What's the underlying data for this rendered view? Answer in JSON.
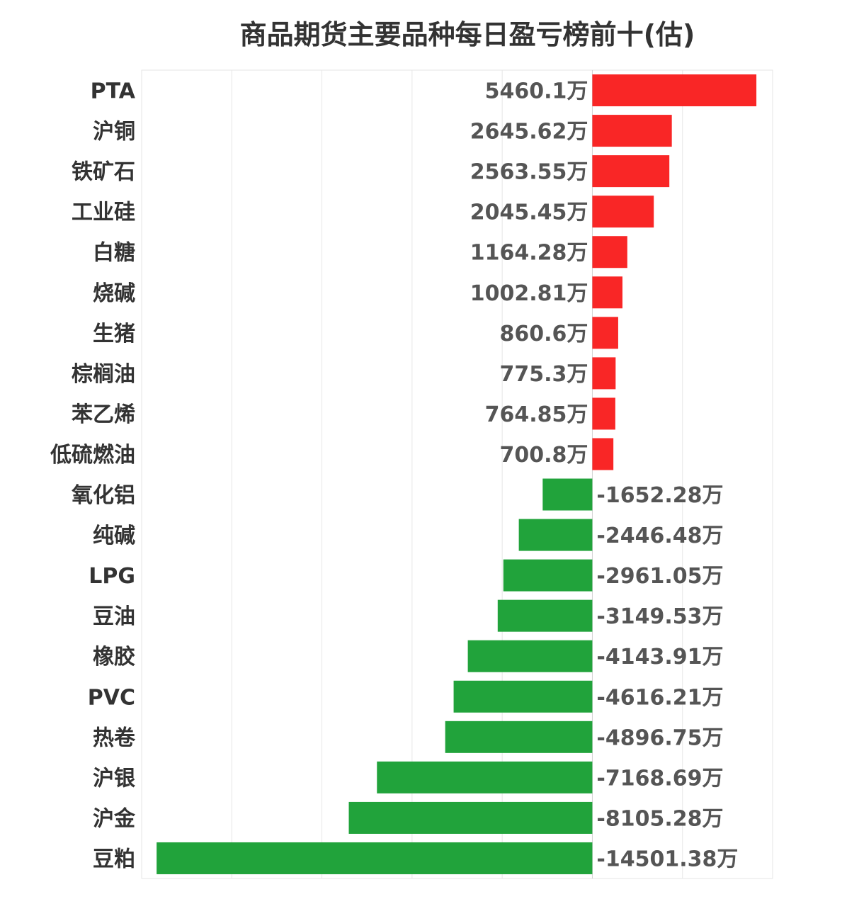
{
  "chart_data": {
    "type": "bar",
    "orientation": "horizontal",
    "title": "商品期货主要品种每日盈亏榜前十(估)",
    "unit_suffix": "万",
    "categories": [
      "PTA",
      "沪铜",
      "铁矿石",
      "工业硅",
      "白糖",
      "烧碱",
      "生猪",
      "棕榈油",
      "苯乙烯",
      "低硫燃油",
      "氧化铝",
      "纯碱",
      "LPG",
      "豆油",
      "橡胶",
      "PVC",
      "热卷",
      "沪银",
      "沪金",
      "豆粕"
    ],
    "values": [
      5460.1,
      2645.62,
      2563.55,
      2045.45,
      1164.28,
      1002.81,
      860.6,
      775.3,
      764.85,
      700.8,
      -1652.28,
      -2446.48,
      -2961.05,
      -3149.53,
      -4143.91,
      -4616.21,
      -4896.75,
      -7168.69,
      -8105.28,
      -14501.38
    ],
    "labels": [
      "5460.1万",
      "2645.62万",
      "2563.55万",
      "2045.45万",
      "1164.28万",
      "1002.81万",
      "860.6万",
      "775.3万",
      "764.85万",
      "700.8万",
      "-1652.28万",
      "-2446.48万",
      "-2961.05万",
      "-3149.53万",
      "-4143.91万",
      "-4616.21万",
      "-4896.75万",
      "-7168.69万",
      "-8105.28万",
      "-14501.38万"
    ],
    "xlim": [
      -15000,
      6000
    ],
    "grid_step": 3000,
    "grid": true,
    "xlabel": "",
    "ylabel": "",
    "colors": {
      "positive": "#f92626",
      "negative": "#21a33b"
    }
  }
}
